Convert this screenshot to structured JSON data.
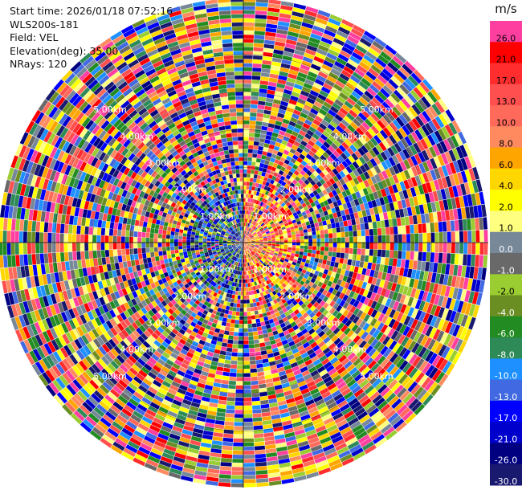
{
  "header": {
    "start_time": "Start time: 2026/01/18 07:52:16",
    "instrument": "WLS200s-181",
    "field": "Field: VEL",
    "elevation": "Elevation(deg): 35.00",
    "nrays": "NRays: 120"
  },
  "chart_data": {
    "type": "heatmap",
    "projection": "polar PPI",
    "field": "VEL",
    "units": "m/s",
    "nrays": 120,
    "elevation_deg": 35.0,
    "range_rings": [
      {
        "label": "1.00km",
        "km": 1.0
      },
      {
        "label": "2.00km",
        "km": 2.0
      },
      {
        "label": "3.00km",
        "km": 3.0
      },
      {
        "label": "4.00km",
        "km": 4.0
      },
      {
        "label": "5.00km",
        "km": 5.0
      }
    ],
    "max_range_km": 6.5,
    "colorbar": {
      "title": "m/s",
      "levels": [
        {
          "label": "26.0",
          "color": "#ff3fa0"
        },
        {
          "label": "21.0",
          "color": "#ff0000"
        },
        {
          "label": "17.0",
          "color": "#ff2d2d"
        },
        {
          "label": "13.0",
          "color": "#ff4f4f"
        },
        {
          "label": "10.0",
          "color": "#ff6a5a"
        },
        {
          "label": "8.0",
          "color": "#ff8a60"
        },
        {
          "label": "6.0",
          "color": "#ffa500"
        },
        {
          "label": "4.0",
          "color": "#ffd700"
        },
        {
          "label": "2.0",
          "color": "#ffff00"
        },
        {
          "label": "1.0",
          "color": "#ffff80"
        },
        {
          "label": "0.0",
          "color": "#778899"
        },
        {
          "label": "-1.0",
          "color": "#696969"
        },
        {
          "label": "-2.0",
          "color": "#9acd32"
        },
        {
          "label": "-4.0",
          "color": "#6b8e23"
        },
        {
          "label": "-6.0",
          "color": "#228b22"
        },
        {
          "label": "-8.0",
          "color": "#2e8b57"
        },
        {
          "label": "-10.0",
          "color": "#1e90ff"
        },
        {
          "label": "-13.0",
          "color": "#4169e1"
        },
        {
          "label": "-17.0",
          "color": "#0000ff"
        },
        {
          "label": "-21.0",
          "color": "#0000cd"
        },
        {
          "label": "-26.0",
          "color": "#000080"
        },
        {
          "label": "-30.0",
          "color": "#191970"
        }
      ]
    }
  }
}
